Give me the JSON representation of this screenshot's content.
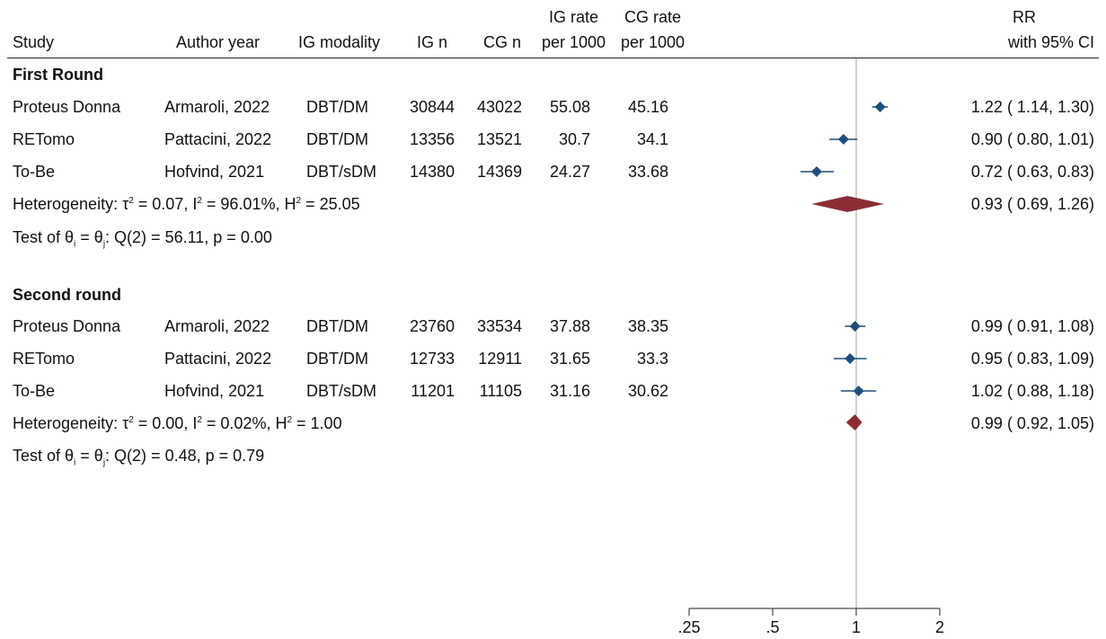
{
  "header": {
    "study": "Study",
    "author_year": "Author year",
    "ig_modality": "IG modality",
    "ig_n": "IG n",
    "cg_n": "CG n",
    "ig_rate_line1": "IG rate",
    "ig_rate_line2": "per 1000",
    "cg_rate_line1": "CG rate",
    "cg_rate_line2": "per 1000",
    "rr_line1": "RR",
    "rr_line2": "with 95% CI"
  },
  "groups": [
    {
      "title": "First Round",
      "studies": [
        {
          "study": "Proteus Donna",
          "author_year": "Armaroli, 2022",
          "modality": "DBT/DM",
          "ig_n": "30844",
          "cg_n": "43022",
          "ig_rate": "55.08",
          "cg_rate": "45.16",
          "ci_text": "1.22 ( 1.14,  1.30)"
        },
        {
          "study": "RETomo",
          "author_year": "Pattacini, 2022",
          "modality": "DBT/DM",
          "ig_n": "13356",
          "cg_n": "13521",
          "ig_rate": "30.7",
          "cg_rate": "34.1",
          "ci_text": "0.90 ( 0.80,  1.01)"
        },
        {
          "study": "To-Be",
          "author_year": "Hofvind, 2021",
          "modality": "DBT/sDM",
          "ig_n": "14380",
          "cg_n": "14369",
          "ig_rate": "24.27",
          "cg_rate": "33.68",
          "ci_text": "0.72 ( 0.63,  0.83)"
        }
      ],
      "het_prefix": "Heterogeneity: τ",
      "het_tau2": "0.07",
      "het_i2": "96.01%",
      "het_h2": "25.05",
      "pooled_ci_text": "0.93 ( 0.69,  1.26)",
      "test_q": "56.11",
      "test_p": "0.00"
    },
    {
      "title": "Second round",
      "studies": [
        {
          "study": "Proteus Donna",
          "author_year": "Armaroli, 2022",
          "modality": "DBT/DM",
          "ig_n": "23760",
          "cg_n": "33534",
          "ig_rate": "37.88",
          "cg_rate": "38.35",
          "ci_text": "0.99 ( 0.91,  1.08)"
        },
        {
          "study": "RETomo",
          "author_year": "Pattacini, 2022",
          "modality": "DBT/DM",
          "ig_n": "12733",
          "cg_n": "12911",
          "ig_rate": "31.65",
          "cg_rate": "33.3",
          "ci_text": "0.95 ( 0.83,  1.09)"
        },
        {
          "study": "To-Be",
          "author_year": "Hofvind, 2021",
          "modality": "DBT/sDM",
          "ig_n": "11201",
          "cg_n": "11105",
          "ig_rate": "31.16",
          "cg_rate": "30.62",
          "ci_text": "1.02 ( 0.88,  1.18)"
        }
      ],
      "het_tau2": "0.00",
      "het_i2": "0.02%",
      "het_h2": "1.00",
      "pooled_ci_text": "0.99 ( 0.92,  1.05)",
      "test_q": "0.48",
      "test_p": "0.79"
    }
  ],
  "chart_data": {
    "type": "forest",
    "x_scale": "log",
    "xlim": [
      0.25,
      2
    ],
    "reference_line": 1,
    "x_ticks": [
      0.25,
      0.5,
      1,
      2
    ],
    "x_tick_labels": [
      ".25",
      ".5",
      "1",
      "2"
    ],
    "colors": {
      "study_marker": "#1f4e79",
      "pooled_diamond": "#8b2e34",
      "reference_line": "#a0a0a0"
    },
    "groups": [
      {
        "name": "First Round",
        "studies": [
          {
            "label": "Proteus Donna",
            "rr": 1.22,
            "lo": 1.14,
            "hi": 1.3
          },
          {
            "label": "RETomo",
            "rr": 0.9,
            "lo": 0.8,
            "hi": 1.01
          },
          {
            "label": "To-Be",
            "rr": 0.72,
            "lo": 0.63,
            "hi": 0.83
          }
        ],
        "pooled": {
          "rr": 0.93,
          "lo": 0.69,
          "hi": 1.26
        }
      },
      {
        "name": "Second round",
        "studies": [
          {
            "label": "Proteus Donna",
            "rr": 0.99,
            "lo": 0.91,
            "hi": 1.08
          },
          {
            "label": "RETomo",
            "rr": 0.95,
            "lo": 0.83,
            "hi": 1.09
          },
          {
            "label": "To-Be",
            "rr": 1.02,
            "lo": 0.88,
            "hi": 1.18
          }
        ],
        "pooled": {
          "rr": 0.99,
          "lo": 0.92,
          "hi": 1.05
        }
      }
    ]
  }
}
